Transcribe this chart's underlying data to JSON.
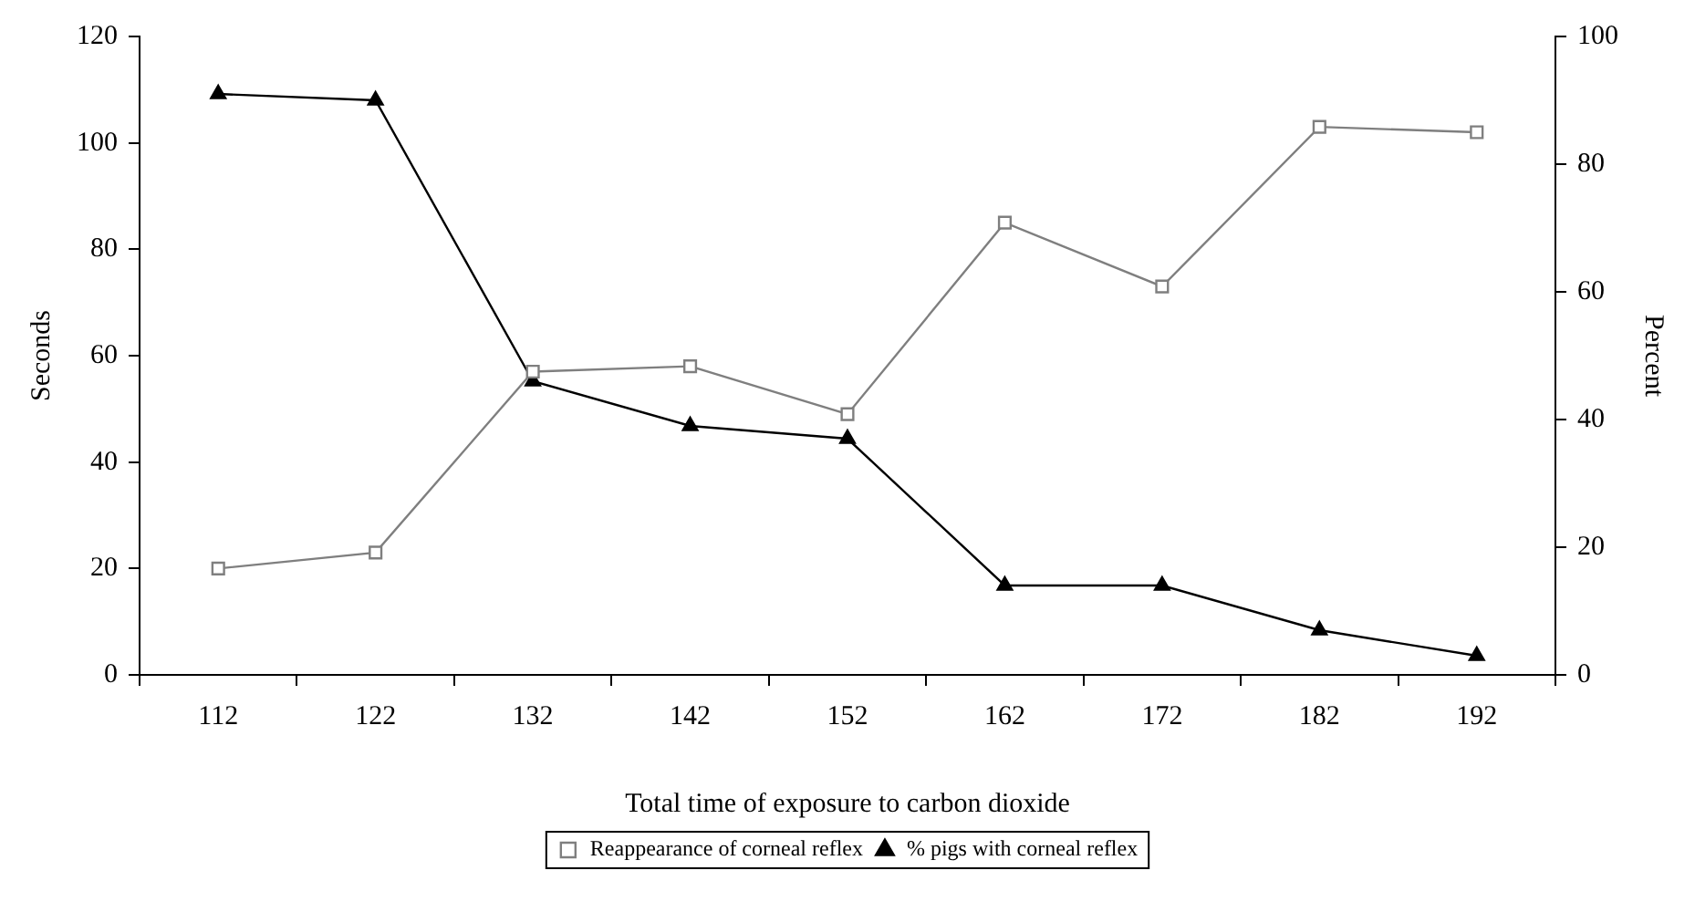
{
  "chart_data": {
    "type": "line",
    "xlabel": "Total time of exposure to carbon dioxide",
    "ylabel": "Seconds",
    "y2label": "Percent",
    "categories": [
      "112",
      "122",
      "132",
      "142",
      "152",
      "162",
      "172",
      "182",
      "192"
    ],
    "series": [
      {
        "name": "Reappearance of corneal reflex",
        "color": "#7f7f7f",
        "marker": "square",
        "values": [
          20,
          23,
          57,
          58,
          49,
          85,
          73,
          103,
          102
        ]
      },
      {
        "name": "% pigs with corneal reflex",
        "color": "#000000",
        "marker": "triangle",
        "axis": "y2",
        "values": [
          91,
          90,
          46,
          39,
          37,
          14,
          14,
          7,
          3
        ]
      }
    ],
    "ylim": [
      0,
      120
    ],
    "yticks": [
      0,
      20,
      40,
      60,
      80,
      100,
      120
    ],
    "y2lim": [
      0,
      100
    ],
    "y2ticks": [
      0,
      20,
      40,
      60,
      80,
      100
    ],
    "grid": false,
    "legend": "bottom",
    "line_style": "solid"
  }
}
